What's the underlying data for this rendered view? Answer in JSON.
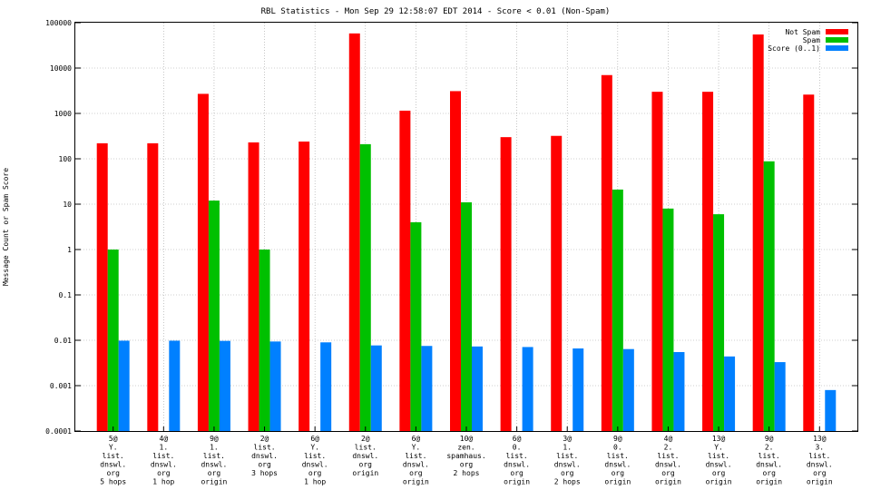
{
  "chart_data": {
    "type": "bar",
    "title": "RBL Statistics - Mon Sep 29 12:58:07 EDT 2014 - Score < 0.01 (Non-Spam)",
    "xlabel": "",
    "ylabel": "Message Count or Spam Score",
    "yscale": "log",
    "ylim": [
      0.0001,
      100000
    ],
    "yticks": [
      "0.0001",
      "0.001",
      "0.01",
      "0.1",
      "1",
      "10",
      "100",
      "1000",
      "10000",
      "100000"
    ],
    "grid": true,
    "legend_position": "top-right",
    "categories": [
      [
        "5@",
        "Y.",
        "list.",
        "dnswl.",
        "org",
        "5 hops"
      ],
      [
        "4@",
        "1.",
        "list.",
        "dnswl.",
        "org",
        "1 hop"
      ],
      [
        "9@",
        "1.",
        "list.",
        "dnswl.",
        "org",
        "origin"
      ],
      [
        "2@",
        "list.",
        "dnswl.",
        "org",
        "3 hops"
      ],
      [
        "6@",
        "Y.",
        "list.",
        "dnswl.",
        "org",
        "1 hop"
      ],
      [
        "2@",
        "list.",
        "dnswl.",
        "org",
        "origin"
      ],
      [
        "6@",
        "Y.",
        "list.",
        "dnswl.",
        "org",
        "origin"
      ],
      [
        "10@",
        "zen.",
        "spamhaus.",
        "org",
        "2 hops"
      ],
      [
        "6@",
        "0.",
        "list.",
        "dnswl.",
        "org",
        "origin"
      ],
      [
        "3@",
        "1.",
        "list.",
        "dnswl.",
        "org",
        "2 hops"
      ],
      [
        "9@",
        "0.",
        "list.",
        "dnswl.",
        "org",
        "origin"
      ],
      [
        "4@",
        "2.",
        "list.",
        "dnswl.",
        "org",
        "origin"
      ],
      [
        "13@",
        "Y.",
        "list.",
        "dnswl.",
        "org",
        "origin"
      ],
      [
        "9@",
        "2.",
        "list.",
        "dnswl.",
        "org",
        "origin"
      ],
      [
        "13@",
        "3.",
        "list.",
        "dnswl.",
        "org",
        "origin"
      ]
    ],
    "series": [
      {
        "name": "Not Spam",
        "color": "#ff0000",
        "values": [
          220,
          220,
          2700,
          230,
          240,
          58000,
          1150,
          3100,
          300,
          320,
          7000,
          3000,
          3000,
          55000,
          2600
        ]
      },
      {
        "name": "Spam",
        "color": "#00c000",
        "values": [
          1,
          0,
          12,
          1,
          0,
          210,
          4,
          11,
          0,
          0,
          21,
          8,
          6,
          88,
          0
        ]
      },
      {
        "name": "Score (0..1)",
        "color": "#0080ff",
        "values": [
          0.0098,
          0.0098,
          0.0097,
          0.0094,
          0.009,
          0.0077,
          0.0075,
          0.0073,
          0.0071,
          0.0066,
          0.0064,
          0.0055,
          0.0044,
          0.0033,
          0.0008
        ]
      }
    ]
  }
}
